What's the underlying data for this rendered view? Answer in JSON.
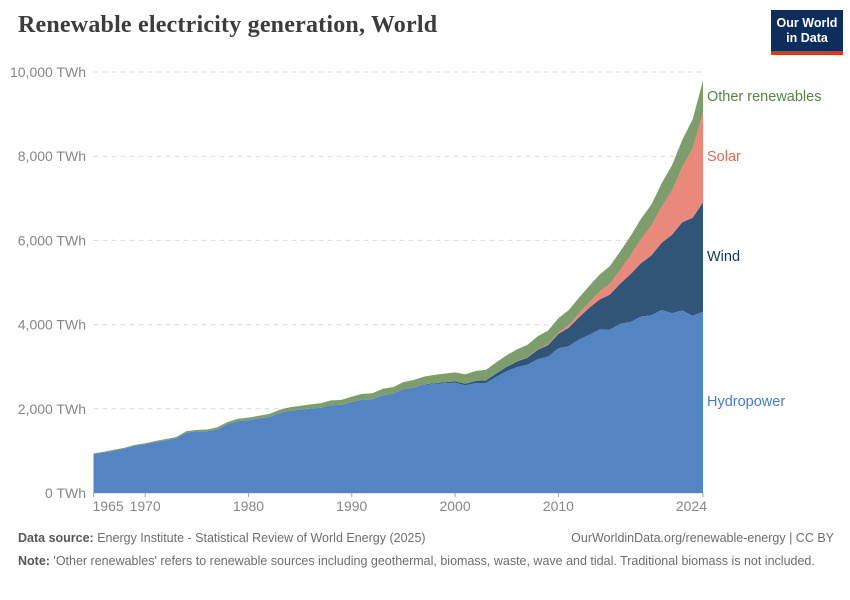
{
  "header": {
    "title": "Renewable electricity generation, World",
    "logo": {
      "line1": "Our World",
      "line2": "in Data"
    },
    "logo_colors": {
      "background": "#0F2D5C",
      "underline": "#D4382D",
      "text": "#FFFFFF"
    }
  },
  "chart_data": {
    "type": "area",
    "stacked": true,
    "title": "Renewable electricity generation, World",
    "xlabel": "",
    "ylabel": "",
    "unit": "TWh",
    "ylim": [
      0,
      10000
    ],
    "ytick_values": [
      0,
      2000,
      4000,
      6000,
      8000,
      10000
    ],
    "xticks": [
      1965,
      1970,
      1980,
      1990,
      2000,
      2010,
      2024
    ],
    "grid": "horizontal-dashed",
    "legend_position": "right-edge-labels",
    "x": [
      1965,
      1966,
      1967,
      1968,
      1969,
      1970,
      1971,
      1972,
      1973,
      1974,
      1975,
      1976,
      1977,
      1978,
      1979,
      1980,
      1981,
      1982,
      1983,
      1984,
      1985,
      1986,
      1987,
      1988,
      1989,
      1990,
      1991,
      1992,
      1993,
      1994,
      1995,
      1996,
      1997,
      1998,
      1999,
      2000,
      2001,
      2002,
      2003,
      2004,
      2005,
      2006,
      2007,
      2008,
      2009,
      2010,
      2011,
      2012,
      2013,
      2014,
      2015,
      2016,
      2017,
      2018,
      2019,
      2020,
      2021,
      2022,
      2023,
      2024
    ],
    "series": [
      {
        "name": "Hydropower",
        "color": "#5584C2",
        "label_color": "#4C7AC7",
        "values": [
          926,
          963,
          1008,
          1059,
          1123,
          1160,
          1209,
          1254,
          1296,
          1437,
          1462,
          1468,
          1519,
          1639,
          1709,
          1732,
          1769,
          1806,
          1899,
          1952,
          1979,
          2006,
          2024,
          2087,
          2090,
          2159,
          2217,
          2221,
          2320,
          2350,
          2459,
          2498,
          2567,
          2594,
          2609,
          2619,
          2558,
          2610,
          2616,
          2760,
          2894,
          2994,
          3045,
          3181,
          3238,
          3437,
          3490,
          3646,
          3757,
          3885,
          3884,
          4019,
          4065,
          4193,
          4222,
          4347,
          4274,
          4334,
          4210,
          4304
        ]
      },
      {
        "name": "Wind",
        "color": "#315479",
        "label_color": "#13355C",
        "values": [
          0,
          0,
          0,
          0,
          0,
          0,
          0,
          0,
          0,
          0,
          0,
          0,
          0,
          0,
          0,
          0,
          0,
          0,
          0,
          1,
          1,
          1,
          2,
          2,
          3,
          4,
          4,
          5,
          6,
          7,
          8,
          9,
          12,
          16,
          21,
          31,
          38,
          52,
          63,
          85,
          104,
          133,
          171,
          221,
          276,
          342,
          437,
          524,
          646,
          712,
          831,
          959,
          1136,
          1265,
          1420,
          1597,
          1862,
          2098,
          2330,
          2602
        ]
      },
      {
        "name": "Solar",
        "color": "#E9897B",
        "label_color": "#E0695A",
        "values": [
          0,
          0,
          0,
          0,
          0,
          0,
          0,
          0,
          0,
          0,
          0,
          0,
          0,
          0,
          0,
          0,
          0,
          0,
          0,
          0,
          0,
          0,
          0,
          0,
          0,
          0,
          0,
          0,
          0,
          0,
          1,
          1,
          1,
          1,
          1,
          1,
          1,
          2,
          2,
          3,
          4,
          5,
          7,
          12,
          20,
          32,
          63,
          97,
          132,
          190,
          256,
          328,
          445,
          574,
          707,
          853,
          1048,
          1315,
          1642,
          2131
        ]
      },
      {
        "name": "Other renewables",
        "color": "#7E9D6D",
        "label_color": "#588148",
        "values": [
          15,
          16,
          17,
          18,
          20,
          23,
          25,
          28,
          31,
          34,
          38,
          41,
          45,
          50,
          55,
          60,
          65,
          70,
          76,
          83,
          90,
          97,
          104,
          111,
          118,
          126,
          134,
          142,
          150,
          158,
          167,
          176,
          185,
          194,
          204,
          214,
          224,
          235,
          246,
          258,
          270,
          283,
          296,
          310,
          324,
          339,
          354,
          370,
          387,
          404,
          422,
          441,
          460,
          480,
          500,
          560,
          600,
          640,
          700,
          760
        ]
      }
    ]
  },
  "footer": {
    "data_source_label": "Data source:",
    "data_source_text": " Energy Institute - Statistical Review of World Energy (2025)",
    "link_text": "OurWorldinData.org/renewable-energy | CC BY",
    "note_label": "Note:",
    "note_text": " 'Other renewables' refers to renewable sources including geothermal, biomass, waste, wave and tidal. Traditional biomass is not included."
  }
}
